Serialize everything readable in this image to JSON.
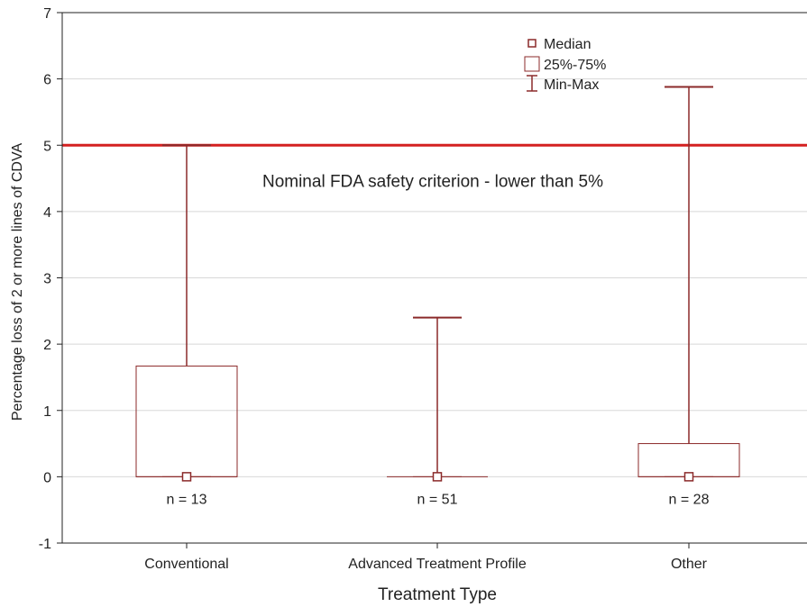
{
  "chart_data": {
    "type": "box",
    "xlabel": "Treatment Type",
    "ylabel": "Percentage loss of 2 or more lines of CDVA",
    "ylim": [
      -1,
      7
    ],
    "yticks": [
      -1,
      0,
      1,
      2,
      3,
      4,
      5,
      6,
      7
    ],
    "grid": true,
    "legend_position": "top-right",
    "legend": [
      "Median",
      "25%-75%",
      "Min-Max"
    ],
    "categories": [
      "Conventional",
      "Advanced Treatment Profile",
      "Other"
    ],
    "boxes": [
      {
        "category": "Conventional",
        "min": 0,
        "q1": 0,
        "median": 0,
        "q3": 1.67,
        "max": 5.0,
        "n_label": "n = 13"
      },
      {
        "category": "Advanced Treatment Profile",
        "min": 0,
        "q1": 0,
        "median": 0,
        "q3": 0,
        "max": 2.4,
        "n_label": "n = 51"
      },
      {
        "category": "Other",
        "min": 0,
        "q1": 0,
        "median": 0,
        "q3": 0.5,
        "max": 5.88,
        "n_label": "n = 28"
      }
    ],
    "reference_line": {
      "value": 5,
      "label": "Nominal FDA safety criterion - lower than 5%"
    },
    "colors": {
      "box": "#8b2a2a",
      "reference": "#d42020",
      "grid": "#d8d8d8",
      "axis": "#222222"
    }
  }
}
